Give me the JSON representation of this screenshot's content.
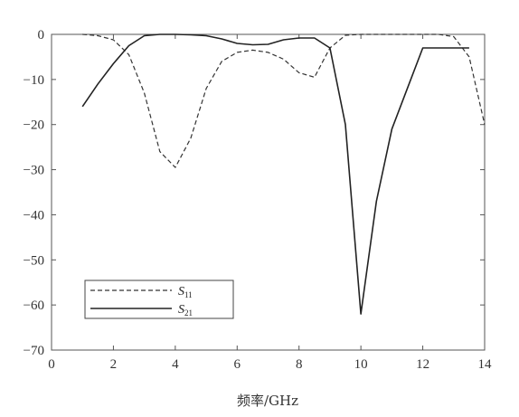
{
  "chart_data": {
    "type": "line",
    "xlabel": "频率/GHz",
    "ylabel": "",
    "xlim": [
      0,
      14
    ],
    "ylim": [
      -70,
      0
    ],
    "xticks": [
      "0",
      "2",
      "4",
      "6",
      "8",
      "10",
      "12",
      "14"
    ],
    "yticks": [
      "0",
      "−10",
      "−20",
      "−30",
      "−40",
      "−50",
      "−60",
      "−70"
    ],
    "grid": false,
    "legend_position": "bottom-left",
    "series": [
      {
        "name": "S11",
        "name_main": "S",
        "name_sub": "11",
        "style": "dashed",
        "color": "#333333",
        "x": [
          1,
          1.5,
          2,
          2.5,
          3,
          3.5,
          4,
          4.5,
          5,
          5.5,
          6,
          6.5,
          7,
          7.5,
          8,
          8.5,
          9,
          9.5,
          10,
          10.5,
          11,
          11.5,
          12,
          12.5,
          13,
          13.5,
          14
        ],
        "y": [
          0,
          -0.3,
          -1.2,
          -4.5,
          -13,
          -26,
          -29.5,
          -23,
          -12,
          -6,
          -4,
          -3.5,
          -4,
          -5.5,
          -8.5,
          -9.5,
          -3,
          -0.2,
          0,
          0,
          0,
          0,
          0,
          0,
          -0.5,
          -5,
          -20
        ]
      },
      {
        "name": "S21",
        "name_main": "S",
        "name_sub": "21",
        "style": "solid",
        "color": "#222222",
        "x": [
          1,
          1.5,
          2,
          2.5,
          3,
          3.5,
          4,
          4.5,
          5,
          5.5,
          6,
          6.5,
          7,
          7.5,
          8,
          8.5,
          9,
          9.5,
          10,
          10.5,
          11,
          11.5,
          12,
          12.5,
          13,
          13.5
        ],
        "y": [
          -16,
          -11,
          -6.5,
          -2.5,
          -0.3,
          0,
          0,
          -0.1,
          -0.3,
          -1,
          -2,
          -2.3,
          -2.2,
          -1.2,
          -0.8,
          -0.8,
          -3,
          -20,
          -62,
          -37,
          -21,
          -12,
          -3,
          -3,
          -3,
          -3
        ]
      }
    ]
  }
}
